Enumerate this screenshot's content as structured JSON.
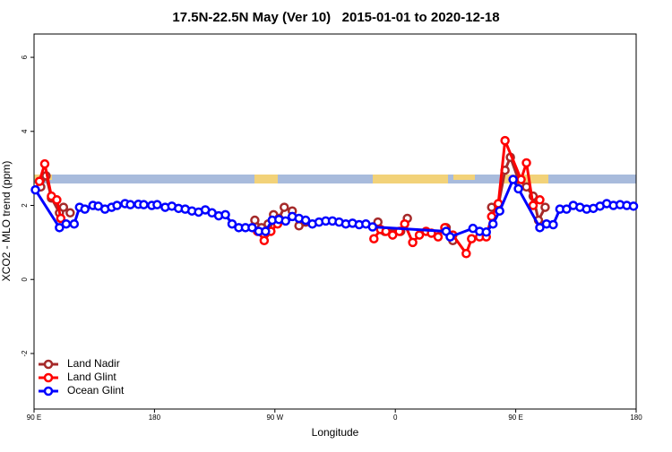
{
  "chart_data": {
    "type": "line",
    "title": "17.5N-22.5N May (Ver 10)   2015-01-01 to 2020-12-18",
    "x_label": "Longitude",
    "y_label": "XCO2 - MLO trend (ppm)",
    "xlim": [
      90,
      540
    ],
    "xticks": [
      {
        "value": 90,
        "label": "90 E"
      },
      {
        "value": 180,
        "label": "180"
      },
      {
        "value": 270,
        "label": "90 W"
      },
      {
        "value": 360,
        "label": "0"
      },
      {
        "value": 450,
        "label": "90 E"
      },
      {
        "value": 540,
        "label": "180"
      }
    ],
    "ylim": [
      -3.5,
      6.63
    ],
    "yticks": [
      -2,
      0,
      2,
      4,
      6
    ],
    "legend": "bottom-left",
    "series": [
      {
        "name": "Land Nadir",
        "color": "#a52a2a",
        "x": [
          95,
          99,
          103,
          109,
          112,
          117,
          null,
          255,
          260,
          265,
          269,
          273,
          277,
          283,
          288,
          293,
          null,
          347,
          352,
          358,
          364,
          369,
          null,
          398,
          403,
          null,
          432,
          437,
          442,
          446,
          452,
          458,
          463,
          467,
          472
        ],
        "values": [
          2.5,
          2.8,
          2.2,
          1.8,
          1.95,
          1.8,
          null,
          1.6,
          1.4,
          1.5,
          1.75,
          1.65,
          1.95,
          1.85,
          1.45,
          1.55,
          null,
          1.55,
          1.3,
          1.25,
          1.3,
          1.65,
          null,
          1.4,
          1.05,
          null,
          1.95,
          2.0,
          2.95,
          3.3,
          2.7,
          2.5,
          2.25,
          1.6,
          1.95
        ]
      },
      {
        "name": "Land Glint",
        "color": "#ff0000",
        "x": [
          94,
          98,
          103,
          107,
          110,
          null,
          257,
          262,
          267,
          272,
          null,
          344,
          349,
          353,
          358,
          363,
          367,
          373,
          378,
          383,
          387,
          392,
          397,
          403,
          413,
          417,
          423,
          428,
          432,
          437,
          442,
          454,
          458,
          463,
          468
        ],
        "values": [
          2.65,
          3.12,
          2.25,
          2.15,
          1.65,
          null,
          1.3,
          1.05,
          1.3,
          1.5,
          null,
          1.1,
          1.35,
          1.3,
          1.2,
          1.3,
          1.5,
          1.0,
          1.2,
          1.3,
          1.25,
          1.15,
          1.4,
          1.2,
          0.7,
          1.1,
          1.15,
          1.15,
          1.7,
          2.05,
          3.75,
          2.7,
          3.15,
          2.0,
          2.15
        ]
      },
      {
        "name": "Ocean Glint",
        "color": "#0000ff",
        "x": [
          91,
          109,
          114,
          120,
          124,
          128,
          134,
          138,
          143,
          148,
          152,
          158,
          162,
          168,
          172,
          178,
          182,
          188,
          193,
          198,
          203,
          208,
          213,
          218,
          223,
          228,
          233,
          238,
          243,
          248,
          253,
          258,
          263,
          268,
          273,
          278,
          283,
          288,
          293,
          298,
          303,
          308,
          313,
          318,
          323,
          328,
          333,
          338,
          343,
          398,
          401,
          418,
          423,
          428,
          433,
          438,
          448,
          452,
          468,
          473,
          478,
          483,
          488,
          493,
          498,
          503,
          508,
          513,
          518,
          523,
          528,
          533,
          538
        ],
        "values": [
          2.42,
          1.4,
          1.5,
          1.5,
          1.95,
          1.9,
          2.0,
          1.98,
          1.9,
          1.95,
          2.0,
          2.05,
          2.02,
          2.03,
          2.02,
          2.0,
          2.02,
          1.95,
          1.98,
          1.92,
          1.9,
          1.85,
          1.82,
          1.88,
          1.8,
          1.72,
          1.75,
          1.5,
          1.4,
          1.4,
          1.4,
          1.3,
          1.3,
          1.6,
          1.62,
          1.58,
          1.7,
          1.65,
          1.6,
          1.5,
          1.55,
          1.58,
          1.58,
          1.55,
          1.5,
          1.52,
          1.48,
          1.5,
          1.42,
          1.3,
          1.15,
          1.38,
          1.3,
          1.28,
          1.5,
          1.85,
          2.7,
          2.45,
          1.4,
          1.5,
          1.48,
          1.9,
          1.9,
          2.0,
          1.95,
          1.9,
          1.92,
          1.98,
          2.05,
          2.0,
          2.02,
          2.0,
          1.98
        ]
      }
    ]
  }
}
